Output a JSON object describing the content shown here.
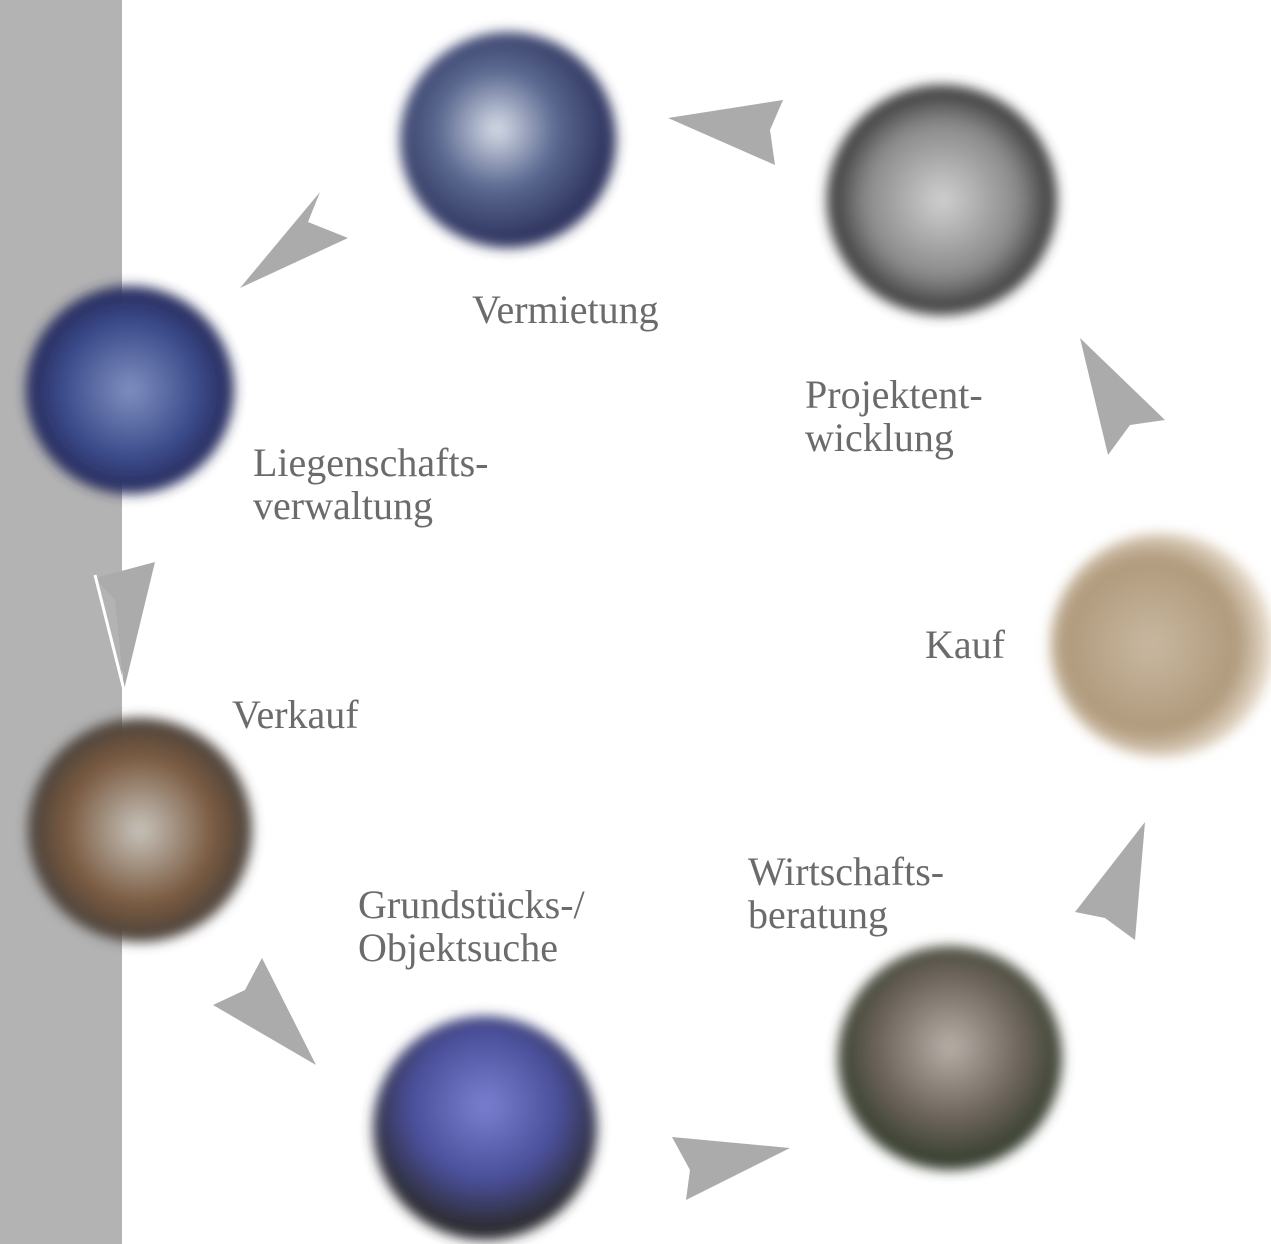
{
  "nodes": [
    {
      "lines": [
        "Vermietung"
      ]
    },
    {
      "lines": [
        "Projektent-",
        "wicklung"
      ]
    },
    {
      "lines": [
        "Kauf"
      ]
    },
    {
      "lines": [
        "Wirtschafts-",
        "beratung"
      ]
    },
    {
      "lines": [
        "Grundstücks-/",
        "Objektsuche"
      ]
    },
    {
      "lines": [
        "Verkauf"
      ]
    },
    {
      "lines": [
        "Liegenschafts-",
        "verwaltung"
      ]
    }
  ]
}
